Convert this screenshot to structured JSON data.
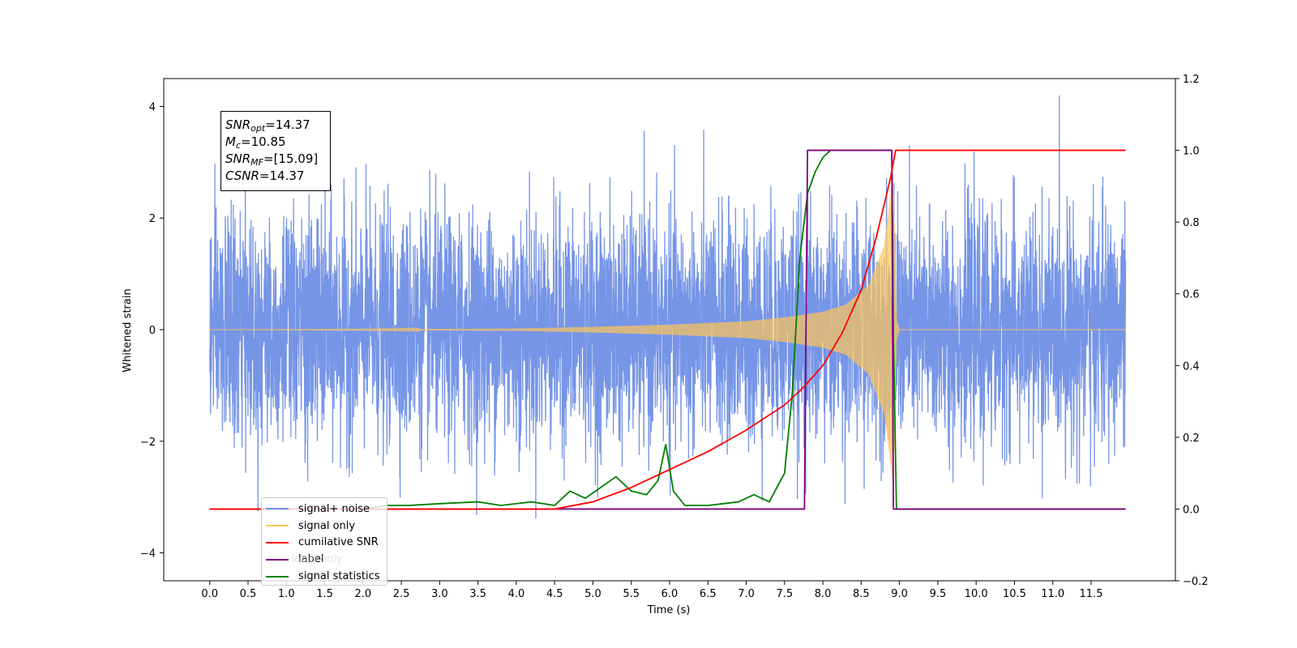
{
  "chart_data": {
    "type": "line",
    "xlabel": "Time (s)",
    "ylabel": "Whitened strain",
    "y2label": "",
    "xlim": [
      -0.6,
      12.6
    ],
    "ylim": [
      -4.5,
      4.5
    ],
    "y2lim": [
      -0.2,
      1.2
    ],
    "x_ticks": [
      "0.0",
      "0.5",
      "1.0",
      "1.5",
      "2.0",
      "2.5",
      "3.0",
      "3.5",
      "4.0",
      "4.5",
      "5.0",
      "5.5",
      "6.0",
      "6.5",
      "7.0",
      "7.5",
      "8.0",
      "8.5",
      "9.0",
      "9.5",
      "10.0",
      "10.5",
      "11.0",
      "11.5"
    ],
    "y_ticks": [
      "−4",
      "−2",
      "0",
      "2",
      "4"
    ],
    "y2_ticks": [
      "−0.2",
      "0.0",
      "0.2",
      "0.4",
      "0.6",
      "0.8",
      "1.0",
      "1.2"
    ],
    "annotation": {
      "lines": [
        {
          "name": "SNR",
          "sub": "opt",
          "value": "=14.37"
        },
        {
          "name": "M",
          "sub": "c",
          "value": "=10.85"
        },
        {
          "name": "SNR",
          "sub": "MF",
          "value": "=[15.09]"
        },
        {
          "name": "CSNR",
          "sub": "",
          "value": "=14.37"
        }
      ]
    },
    "legend": {
      "placement": "lower-left",
      "entries": [
        {
          "label": "signal+ noise",
          "color": "#6f8fe6"
        },
        {
          "label": "signal only",
          "color": "#ffc658"
        },
        {
          "label": "cumilative SNR",
          "color": "#ff0000"
        },
        {
          "label": "label",
          "color": "#800080"
        },
        {
          "label": "signal statistics",
          "color": "#008000"
        }
      ],
      "occluded_text": "label only"
    },
    "series": [
      {
        "name": "signal+ noise",
        "axis": "left",
        "color": "#6f8fe6",
        "description": "white noise, std ~1.0, dense samples 0.0-11.95 s"
      },
      {
        "name": "signal only",
        "axis": "left",
        "color": "#ffc658",
        "description": "chirp with growing amplitude",
        "x": [
          0.0,
          2.0,
          4.0,
          5.0,
          6.0,
          7.0,
          7.5,
          8.0,
          8.3,
          8.6,
          8.8,
          8.92,
          8.96,
          9.0,
          11.95
        ],
        "amplitude": [
          0.0,
          0.005,
          0.02,
          0.05,
          0.09,
          0.15,
          0.22,
          0.32,
          0.45,
          0.8,
          1.5,
          2.8,
          0.2,
          0.0,
          0.0
        ]
      },
      {
        "name": "cumilative SNR",
        "axis": "right",
        "color": "#ff0000",
        "x": [
          0.0,
          4.5,
          5.0,
          5.5,
          6.0,
          6.5,
          7.0,
          7.5,
          7.75,
          8.0,
          8.25,
          8.5,
          8.7,
          8.88,
          8.95,
          9.0,
          11.95
        ],
        "y": [
          0.0,
          0.0,
          0.02,
          0.06,
          0.11,
          0.16,
          0.22,
          0.29,
          0.34,
          0.4,
          0.49,
          0.61,
          0.76,
          0.92,
          1.0,
          1.0,
          1.0
        ]
      },
      {
        "name": "label",
        "axis": "right",
        "color": "#800080",
        "x": [
          0.0,
          7.76,
          7.8,
          8.9,
          8.92,
          11.95
        ],
        "y": [
          0.0,
          0.0,
          1.0,
          1.0,
          0.0,
          0.0
        ]
      },
      {
        "name": "signal statistics",
        "axis": "right",
        "color": "#008000",
        "x": [
          0.0,
          2.0,
          2.3,
          2.6,
          3.0,
          3.5,
          3.8,
          4.2,
          4.5,
          4.7,
          4.9,
          5.1,
          5.3,
          5.5,
          5.7,
          5.85,
          5.95,
          6.05,
          6.2,
          6.5,
          6.9,
          7.1,
          7.3,
          7.5,
          7.6,
          7.7,
          7.8,
          7.9,
          8.0,
          8.1,
          8.2,
          8.9,
          8.92,
          8.96,
          11.95
        ],
        "y": [
          0.0,
          0.0,
          0.01,
          0.01,
          0.015,
          0.02,
          0.01,
          0.02,
          0.01,
          0.05,
          0.03,
          0.06,
          0.09,
          0.05,
          0.04,
          0.08,
          0.18,
          0.05,
          0.01,
          0.01,
          0.02,
          0.04,
          0.02,
          0.1,
          0.32,
          0.7,
          0.88,
          0.94,
          0.98,
          1.0,
          1.0,
          1.0,
          0.5,
          0.0,
          0.0
        ]
      }
    ]
  }
}
